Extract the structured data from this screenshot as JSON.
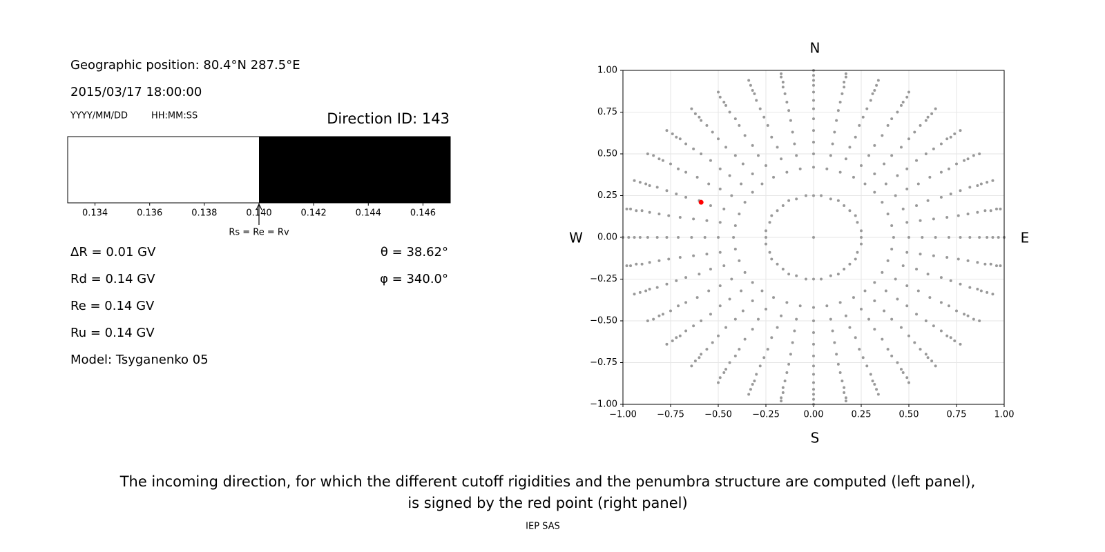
{
  "chart_data": [
    {
      "type": "strip",
      "position": "Geographic position: 80.4°N 287.5°E",
      "datetime": "2015/03/17 18:00:00",
      "date_format": "YYYY/MM/DD",
      "time_format": "HH:MM:SS",
      "direction": "Direction ID: 143",
      "segments": [
        {
          "color": "#ffffff",
          "start": 0.133,
          "end": 0.14
        },
        {
          "color": "#000000",
          "start": 0.14,
          "end": 0.147
        }
      ],
      "xlim": [
        0.133,
        0.147
      ],
      "xticks": [
        0.134,
        0.136,
        0.138,
        {
          "value": 0.14,
          "label": "0.140"
        },
        0.142,
        0.144,
        0.146
      ],
      "annotation": {
        "text": "Rs = Re = Rv",
        "x": 0.14
      },
      "lines": [
        "ΔR = 0.01 GV",
        "Rd = 0.14 GV",
        "Re = 0.14 GV",
        "Ru = 0.14 GV",
        "Model: Tsyganenko 05"
      ],
      "angles": [
        "θ = 38.62°",
        "φ = 340.0°"
      ]
    },
    {
      "type": "scatter",
      "color": "#999999",
      "x": [
        0.25,
        0.42,
        0.5,
        0.57,
        0.64,
        0.71,
        0.77,
        0.82,
        0.87,
        0.91,
        0.94,
        0.97,
        1.0,
        0.25,
        0.41,
        0.49,
        0.56,
        0.63,
        0.7,
        0.76,
        0.81,
        0.86,
        0.9,
        0.93,
        0.96,
        0.98,
        0.23,
        0.39,
        0.47,
        0.54,
        0.6,
        0.67,
        0.72,
        0.77,
        0.82,
        0.86,
        0.88,
        0.91,
        0.94,
        0.22,
        0.36,
        0.43,
        0.49,
        0.55,
        0.61,
        0.67,
        0.71,
        0.75,
        0.79,
        0.81,
        0.84,
        0.87,
        0.19,
        0.32,
        0.38,
        0.44,
        0.49,
        0.54,
        0.59,
        0.63,
        0.67,
        0.7,
        0.72,
        0.74,
        0.77,
        0.16,
        0.27,
        0.32,
        0.37,
        0.41,
        0.46,
        0.5,
        0.53,
        0.56,
        0.59,
        0.6,
        0.62,
        0.64,
        0.13,
        0.21,
        0.25,
        0.29,
        0.32,
        0.36,
        0.39,
        0.41,
        0.44,
        0.46,
        0.47,
        0.49,
        0.5,
        0.09,
        0.14,
        0.17,
        0.19,
        0.22,
        0.24,
        0.26,
        0.28,
        0.3,
        0.31,
        0.32,
        0.33,
        0.34,
        0.04,
        0.07,
        0.09,
        0.1,
        0.11,
        0.12,
        0.13,
        0.14,
        0.15,
        0.16,
        0.16,
        0.17,
        0.17,
        0,
        0,
        0,
        0,
        0,
        0,
        0,
        0,
        0,
        0,
        0,
        0,
        0,
        -0.04,
        -0.07,
        -0.09,
        -0.1,
        -0.11,
        -0.12,
        -0.13,
        -0.14,
        -0.15,
        -0.16,
        -0.16,
        -0.17,
        -0.17,
        -0.09,
        -0.14,
        -0.17,
        -0.19,
        -0.22,
        -0.24,
        -0.26,
        -0.28,
        -0.3,
        -0.31,
        -0.32,
        -0.33,
        -0.34,
        -0.13,
        -0.21,
        -0.25,
        -0.29,
        -0.32,
        -0.36,
        -0.39,
        -0.41,
        -0.44,
        -0.46,
        -0.47,
        -0.49,
        -0.5,
        -0.16,
        -0.27,
        -0.32,
        -0.37,
        -0.41,
        -0.46,
        -0.5,
        -0.53,
        -0.56,
        -0.59,
        -0.6,
        -0.62,
        -0.64,
        -0.19,
        -0.32,
        -0.38,
        -0.44,
        -0.49,
        -0.54,
        -0.59,
        -0.63,
        -0.67,
        -0.7,
        -0.72,
        -0.74,
        -0.77,
        -0.22,
        -0.36,
        -0.43,
        -0.49,
        -0.55,
        -0.61,
        -0.67,
        -0.71,
        -0.75,
        -0.79,
        -0.81,
        -0.84,
        -0.87,
        -0.23,
        -0.39,
        -0.47,
        -0.54,
        -0.6,
        -0.67,
        -0.72,
        -0.77,
        -0.82,
        -0.86,
        -0.88,
        -0.91,
        -0.94,
        -0.25,
        -0.41,
        -0.49,
        -0.56,
        -0.63,
        -0.7,
        -0.76,
        -0.81,
        -0.86,
        -0.9,
        -0.93,
        -0.96,
        -0.98,
        -0.25,
        -0.42,
        -0.5,
        -0.57,
        -0.64,
        -0.71,
        -0.77,
        -0.82,
        -0.87,
        -0.91,
        -0.94,
        -0.97,
        -1.0,
        -0.25,
        -0.41,
        -0.49,
        -0.56,
        -0.63,
        -0.7,
        -0.76,
        -0.81,
        -0.86,
        -0.9,
        -0.93,
        -0.96,
        -0.98,
        -0.23,
        -0.39,
        -0.47,
        -0.54,
        -0.6,
        -0.67,
        -0.72,
        -0.77,
        -0.82,
        -0.86,
        -0.88,
        -0.91,
        -0.94,
        -0.22,
        -0.36,
        -0.43,
        -0.49,
        -0.55,
        -0.61,
        -0.67,
        -0.71,
        -0.75,
        -0.79,
        -0.81,
        -0.84,
        -0.87,
        -0.19,
        -0.32,
        -0.38,
        -0.44,
        -0.49,
        -0.54,
        -0.59,
        -0.63,
        -0.67,
        -0.7,
        -0.72,
        -0.74,
        -0.77,
        -0.16,
        -0.27,
        -0.32,
        -0.37,
        -0.41,
        -0.46,
        -0.5,
        -0.53,
        -0.56,
        -0.59,
        -0.6,
        -0.62,
        -0.64,
        -0.13,
        -0.21,
        -0.25,
        -0.29,
        -0.32,
        -0.36,
        -0.39,
        -0.41,
        -0.44,
        -0.46,
        -0.47,
        -0.49,
        -0.5,
        -0.09,
        -0.14,
        -0.17,
        -0.19,
        -0.22,
        -0.24,
        -0.26,
        -0.28,
        -0.3,
        -0.31,
        -0.32,
        -0.33,
        -0.34,
        -0.04,
        -0.07,
        -0.09,
        -0.1,
        -0.11,
        -0.12,
        -0.13,
        -0.14,
        -0.15,
        -0.16,
        -0.16,
        -0.17,
        -0.17,
        0,
        0,
        0,
        0,
        0,
        0,
        0,
        0,
        0,
        0,
        0,
        0,
        0,
        0.04,
        0.07,
        0.09,
        0.1,
        0.11,
        0.12,
        0.13,
        0.14,
        0.15,
        0.16,
        0.16,
        0.17,
        0.17,
        0.09,
        0.14,
        0.17,
        0.19,
        0.22,
        0.24,
        0.26,
        0.28,
        0.3,
        0.31,
        0.32,
        0.33,
        0.34,
        0.13,
        0.21,
        0.25,
        0.29,
        0.32,
        0.36,
        0.39,
        0.41,
        0.44,
        0.46,
        0.47,
        0.49,
        0.5,
        0.16,
        0.27,
        0.32,
        0.37,
        0.41,
        0.46,
        0.5,
        0.53,
        0.56,
        0.59,
        0.6,
        0.62,
        0.64,
        0.19,
        0.32,
        0.38,
        0.44,
        0.49,
        0.54,
        0.59,
        0.63,
        0.67,
        0.7,
        0.72,
        0.74,
        0.77,
        0.22,
        0.36,
        0.43,
        0.49,
        0.55,
        0.61,
        0.67,
        0.71,
        0.75,
        0.79,
        0.81,
        0.84,
        0.87,
        0.23,
        0.39,
        0.47,
        0.54,
        0.6,
        0.67,
        0.72,
        0.77,
        0.82,
        0.86,
        0.88,
        0.91,
        0.94,
        0.25,
        0.41,
        0.49,
        0.56,
        0.63,
        0.7,
        0.76,
        0.81,
        0.86,
        0.9,
        0.93,
        0.96,
        0.98,
        0
      ],
      "values": [
        0,
        0,
        0,
        0,
        0,
        0,
        0,
        0,
        0,
        0,
        0,
        0,
        0,
        0.04,
        0.07,
        0.09,
        0.1,
        0.11,
        0.12,
        0.13,
        0.14,
        0.15,
        0.16,
        0.16,
        0.17,
        0.17,
        0.09,
        0.14,
        0.17,
        0.19,
        0.22,
        0.24,
        0.26,
        0.28,
        0.3,
        0.31,
        0.32,
        0.33,
        0.34,
        0.13,
        0.21,
        0.25,
        0.29,
        0.32,
        0.36,
        0.39,
        0.41,
        0.44,
        0.46,
        0.47,
        0.49,
        0.5,
        0.16,
        0.27,
        0.32,
        0.37,
        0.41,
        0.46,
        0.5,
        0.53,
        0.56,
        0.59,
        0.6,
        0.62,
        0.64,
        0.19,
        0.32,
        0.38,
        0.44,
        0.49,
        0.54,
        0.59,
        0.63,
        0.67,
        0.7,
        0.72,
        0.74,
        0.77,
        0.22,
        0.36,
        0.43,
        0.49,
        0.55,
        0.61,
        0.67,
        0.71,
        0.75,
        0.79,
        0.81,
        0.84,
        0.87,
        0.23,
        0.39,
        0.47,
        0.54,
        0.6,
        0.67,
        0.72,
        0.77,
        0.82,
        0.86,
        0.88,
        0.91,
        0.94,
        0.25,
        0.41,
        0.49,
        0.56,
        0.63,
        0.7,
        0.76,
        0.81,
        0.86,
        0.9,
        0.93,
        0.96,
        0.98,
        0.25,
        0.42,
        0.5,
        0.57,
        0.64,
        0.71,
        0.77,
        0.82,
        0.87,
        0.91,
        0.94,
        0.97,
        1.0,
        0.25,
        0.41,
        0.49,
        0.56,
        0.63,
        0.7,
        0.76,
        0.81,
        0.86,
        0.9,
        0.93,
        0.96,
        0.98,
        0.23,
        0.39,
        0.47,
        0.54,
        0.6,
        0.67,
        0.72,
        0.77,
        0.82,
        0.86,
        0.88,
        0.91,
        0.94,
        0.22,
        0.36,
        0.43,
        0.49,
        0.55,
        0.61,
        0.67,
        0.71,
        0.75,
        0.79,
        0.81,
        0.84,
        0.87,
        0.19,
        0.32,
        0.38,
        0.44,
        0.49,
        0.54,
        0.59,
        0.63,
        0.67,
        0.7,
        0.72,
        0.74,
        0.77,
        0.16,
        0.27,
        0.32,
        0.37,
        0.41,
        0.46,
        0.5,
        0.53,
        0.56,
        0.59,
        0.6,
        0.62,
        0.64,
        0.13,
        0.21,
        0.25,
        0.29,
        0.32,
        0.36,
        0.39,
        0.41,
        0.44,
        0.46,
        0.47,
        0.49,
        0.5,
        0.09,
        0.14,
        0.17,
        0.19,
        0.22,
        0.24,
        0.26,
        0.28,
        0.3,
        0.31,
        0.32,
        0.33,
        0.34,
        0.04,
        0.07,
        0.09,
        0.1,
        0.11,
        0.12,
        0.13,
        0.14,
        0.15,
        0.16,
        0.16,
        0.17,
        0.17,
        0,
        0,
        0,
        0,
        0,
        0,
        0,
        0,
        0,
        0,
        0,
        0,
        0,
        -0.04,
        -0.07,
        -0.09,
        -0.1,
        -0.11,
        -0.12,
        -0.13,
        -0.14,
        -0.15,
        -0.16,
        -0.16,
        -0.17,
        -0.17,
        -0.09,
        -0.14,
        -0.17,
        -0.19,
        -0.22,
        -0.24,
        -0.26,
        -0.28,
        -0.3,
        -0.31,
        -0.32,
        -0.33,
        -0.34,
        -0.13,
        -0.21,
        -0.25,
        -0.29,
        -0.32,
        -0.36,
        -0.39,
        -0.41,
        -0.44,
        -0.46,
        -0.47,
        -0.49,
        -0.5,
        -0.16,
        -0.27,
        -0.32,
        -0.37,
        -0.41,
        -0.46,
        -0.5,
        -0.53,
        -0.56,
        -0.59,
        -0.6,
        -0.62,
        -0.64,
        -0.19,
        -0.32,
        -0.38,
        -0.44,
        -0.49,
        -0.54,
        -0.59,
        -0.63,
        -0.67,
        -0.7,
        -0.72,
        -0.74,
        -0.77,
        -0.22,
        -0.36,
        -0.43,
        -0.49,
        -0.55,
        -0.61,
        -0.67,
        -0.71,
        -0.75,
        -0.79,
        -0.81,
        -0.84,
        -0.87,
        -0.23,
        -0.39,
        -0.47,
        -0.54,
        -0.6,
        -0.67,
        -0.72,
        -0.77,
        -0.82,
        -0.86,
        -0.88,
        -0.91,
        -0.94,
        -0.25,
        -0.41,
        -0.49,
        -0.56,
        -0.63,
        -0.7,
        -0.76,
        -0.81,
        -0.86,
        -0.9,
        -0.93,
        -0.96,
        -0.98,
        -0.25,
        -0.42,
        -0.5,
        -0.57,
        -0.64,
        -0.71,
        -0.77,
        -0.82,
        -0.87,
        -0.91,
        -0.94,
        -0.97,
        -1.0,
        -0.25,
        -0.41,
        -0.49,
        -0.56,
        -0.63,
        -0.7,
        -0.76,
        -0.81,
        -0.86,
        -0.9,
        -0.93,
        -0.96,
        -0.98,
        -0.23,
        -0.39,
        -0.47,
        -0.54,
        -0.6,
        -0.67,
        -0.72,
        -0.77,
        -0.82,
        -0.86,
        -0.88,
        -0.91,
        -0.94,
        -0.22,
        -0.36,
        -0.43,
        -0.49,
        -0.55,
        -0.61,
        -0.67,
        -0.71,
        -0.75,
        -0.79,
        -0.81,
        -0.84,
        -0.87,
        -0.19,
        -0.32,
        -0.38,
        -0.44,
        -0.49,
        -0.54,
        -0.59,
        -0.63,
        -0.67,
        -0.7,
        -0.72,
        -0.74,
        -0.77,
        -0.16,
        -0.27,
        -0.32,
        -0.37,
        -0.41,
        -0.46,
        -0.5,
        -0.53,
        -0.56,
        -0.59,
        -0.6,
        -0.62,
        -0.64,
        -0.13,
        -0.21,
        -0.25,
        -0.29,
        -0.32,
        -0.36,
        -0.39,
        -0.41,
        -0.44,
        -0.46,
        -0.47,
        -0.49,
        -0.5,
        -0.09,
        -0.14,
        -0.17,
        -0.19,
        -0.22,
        -0.24,
        -0.26,
        -0.28,
        -0.3,
        -0.31,
        -0.32,
        -0.33,
        -0.34,
        -0.04,
        -0.07,
        -0.09,
        -0.1,
        -0.11,
        -0.12,
        -0.13,
        -0.14,
        -0.15,
        -0.16,
        -0.16,
        -0.17,
        -0.17,
        0
      ],
      "highlight": {
        "x": -0.59,
        "y": 0.21,
        "color": "#ff0000"
      },
      "xlim": [
        -1,
        1
      ],
      "ylim": [
        -1,
        1
      ],
      "xticks": [
        {
          "value": -1,
          "label": "−1.00"
        },
        {
          "value": -0.75,
          "label": "−0.75"
        },
        {
          "value": -0.5,
          "label": "−0.50"
        },
        {
          "value": -0.25,
          "label": "−0.25"
        },
        {
          "value": 0,
          "label": "0.00"
        },
        {
          "value": 0.25,
          "label": "0.25"
        },
        {
          "value": 0.5,
          "label": "0.50"
        },
        {
          "value": 0.75,
          "label": "0.75"
        },
        {
          "value": 1,
          "label": "1.00"
        }
      ],
      "yticks": [
        {
          "value": -1,
          "label": "−1.00"
        },
        {
          "value": -0.75,
          "label": "−0.75"
        },
        {
          "value": -0.5,
          "label": "−0.50"
        },
        {
          "value": -0.25,
          "label": "−0.25"
        },
        {
          "value": 0,
          "label": "0.00"
        },
        {
          "value": 0.25,
          "label": "0.25"
        },
        {
          "value": 0.5,
          "label": "0.50"
        },
        {
          "value": 0.75,
          "label": "0.75"
        },
        {
          "value": 1,
          "label": "1.00"
        }
      ],
      "grid": true,
      "north": "N",
      "south": "S",
      "west": "W",
      "east": "E"
    }
  ],
  "caption": [
    "The incoming direction, for which the different cutoff rigidities and the penumbra structure are computed (left panel),",
    "is signed by the red point (right panel)"
  ],
  "footer": "IEP SAS"
}
